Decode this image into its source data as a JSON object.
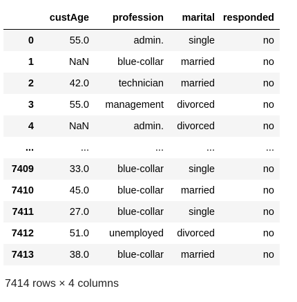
{
  "columns": {
    "index": "",
    "custAge": "custAge",
    "profession": "profession",
    "marital": "marital",
    "responded": "responded"
  },
  "rows": [
    {
      "index": "0",
      "custAge": "55.0",
      "profession": "admin.",
      "marital": "single",
      "responded": "no"
    },
    {
      "index": "1",
      "custAge": "NaN",
      "profession": "blue-collar",
      "marital": "married",
      "responded": "no"
    },
    {
      "index": "2",
      "custAge": "42.0",
      "profession": "technician",
      "marital": "married",
      "responded": "no"
    },
    {
      "index": "3",
      "custAge": "55.0",
      "profession": "management",
      "marital": "divorced",
      "responded": "no"
    },
    {
      "index": "4",
      "custAge": "NaN",
      "profession": "admin.",
      "marital": "divorced",
      "responded": "no"
    },
    {
      "index": "...",
      "custAge": "...",
      "profession": "...",
      "marital": "...",
      "responded": "..."
    },
    {
      "index": "7409",
      "custAge": "33.0",
      "profession": "blue-collar",
      "marital": "single",
      "responded": "no"
    },
    {
      "index": "7410",
      "custAge": "45.0",
      "profession": "blue-collar",
      "marital": "married",
      "responded": "no"
    },
    {
      "index": "7411",
      "custAge": "27.0",
      "profession": "blue-collar",
      "marital": "single",
      "responded": "no"
    },
    {
      "index": "7412",
      "custAge": "51.0",
      "profession": "unemployed",
      "marital": "divorced",
      "responded": "no"
    },
    {
      "index": "7413",
      "custAge": "38.0",
      "profession": "blue-collar",
      "marital": "married",
      "responded": "no"
    }
  ],
  "shape_note": "7414 rows × 4 columns",
  "colors": {
    "header_rule": "#000000",
    "stripe": "#f5f5f5",
    "text": "#000000"
  }
}
